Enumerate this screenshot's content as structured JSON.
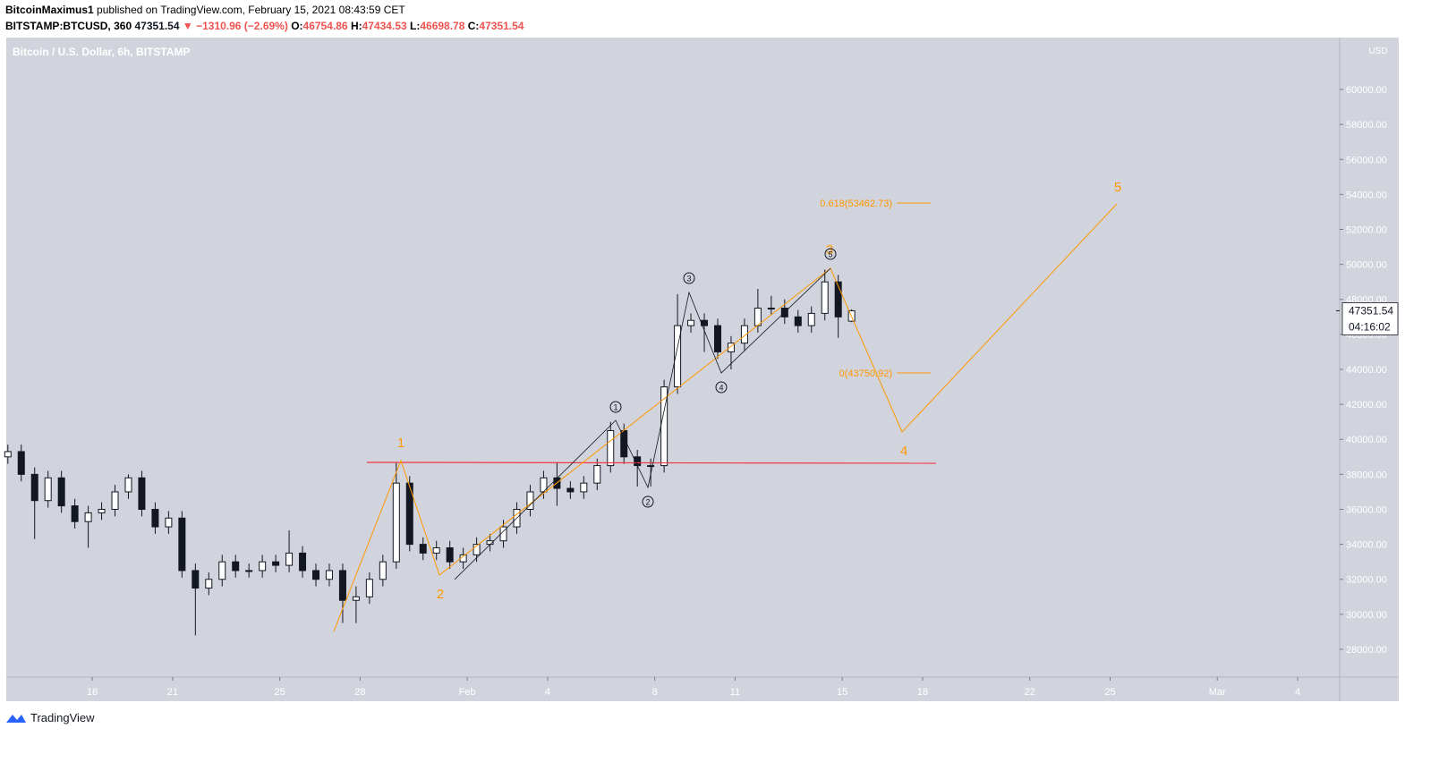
{
  "header": {
    "author": "BitcoinMaximus1",
    "published": "published on TradingView.com, February 15, 2021 08:43:59 CET",
    "symbol": "BITSTAMP:BTCUSD, 360",
    "last": "47351.54",
    "change": "▼ −1310.96 (−2.69%)",
    "ohlc": [
      {
        "label": "O:",
        "value": "46754.86"
      },
      {
        "label": "H:",
        "value": "47434.53"
      },
      {
        "label": "L:",
        "value": "46698.78"
      },
      {
        "label": "C:",
        "value": "47351.54"
      }
    ]
  },
  "chart_data": {
    "type": "candlestick",
    "title": "Bitcoin / U.S. Dollar, 6h, BITSTAMP",
    "currency": "USD",
    "last_price": 47351.54,
    "last_price_label": "47351.54",
    "countdown": "04:16:02",
    "up_color": "#ffffff",
    "down_color": "#131722",
    "background": "#d1d4dc",
    "x": [
      14.85,
      15.35,
      15.85,
      16.35,
      16.85,
      17.35,
      17.85,
      18.35,
      18.85,
      19.35,
      19.85,
      20.35,
      20.85,
      21.35,
      21.85,
      22.35,
      22.85,
      23.35,
      23.85,
      24.35,
      24.85,
      25.35,
      25.85,
      26.35,
      26.85,
      27.35,
      27.85,
      28.35,
      28.85,
      29.35,
      29.85,
      30.35,
      30.85,
      31.35,
      31.85,
      32.35,
      32.85,
      33.35,
      33.85,
      34.35,
      34.85,
      35.35,
      35.85,
      36.35,
      36.85,
      37.35,
      37.85,
      38.35,
      38.85,
      39.35,
      39.85,
      40.35,
      40.85,
      41.35,
      41.85,
      42.35,
      42.85,
      43.35,
      43.85,
      44.35,
      44.85,
      45.35,
      45.85,
      46.35
    ],
    "open": [
      39000,
      39300,
      38000,
      36500,
      37800,
      36200,
      35300,
      35800,
      36000,
      37000,
      37800,
      36000,
      35000,
      35500,
      32500,
      31500,
      32000,
      33000,
      32500,
      32500,
      33000,
      32800,
      33500,
      32500,
      32000,
      32500,
      30800,
      31000,
      32000,
      33000,
      37500,
      34000,
      33500,
      33800,
      33000,
      33400,
      34000,
      34200,
      35000,
      36000,
      37000,
      37800,
      37200,
      37000,
      37500,
      38500,
      40500,
      39000,
      38500,
      38500,
      43000,
      46500,
      46800,
      46500,
      45000,
      45500,
      46500,
      47500,
      47500,
      47000,
      46500,
      47200,
      49000,
      46754.86
    ],
    "high": [
      39700,
      39700,
      38400,
      38200,
      38200,
      36600,
      36200,
      36400,
      37400,
      38000,
      38200,
      36400,
      35900,
      35900,
      32900,
      32400,
      33400,
      33400,
      32900,
      33400,
      33400,
      34800,
      33900,
      32900,
      32900,
      32900,
      31600,
      32400,
      33400,
      38700,
      37900,
      34400,
      34200,
      34200,
      33800,
      34400,
      34600,
      35400,
      36400,
      37400,
      38200,
      38700,
      37600,
      37900,
      38900,
      41000,
      40900,
      39400,
      38900,
      43400,
      48300,
      47200,
      47200,
      46900,
      45900,
      46900,
      48600,
      48200,
      48000,
      47400,
      47600,
      49700,
      49400,
      47434.53
    ],
    "low": [
      38600,
      37600,
      34300,
      36100,
      35800,
      34900,
      33800,
      35400,
      35600,
      36600,
      35600,
      34600,
      34600,
      32100,
      28800,
      31100,
      31600,
      32100,
      32100,
      32100,
      32400,
      32400,
      32100,
      31600,
      31600,
      29500,
      29500,
      30600,
      31600,
      32600,
      33600,
      33100,
      33100,
      32600,
      32600,
      33000,
      33600,
      33800,
      34600,
      35600,
      36600,
      36200,
      36600,
      36600,
      37100,
      38100,
      38600,
      37300,
      37300,
      38100,
      42600,
      46100,
      45000,
      44600,
      44000,
      45100,
      46100,
      47100,
      46600,
      46100,
      46100,
      46800,
      45800,
      46698.78
    ],
    "close": [
      39300,
      38000,
      36500,
      37800,
      36200,
      35300,
      35800,
      36000,
      37000,
      37800,
      36000,
      35000,
      35500,
      32500,
      31500,
      32000,
      33000,
      32500,
      32500,
      33000,
      32800,
      33500,
      32500,
      32000,
      32500,
      30800,
      31000,
      32000,
      33000,
      37500,
      34000,
      33500,
      33800,
      33000,
      33400,
      34000,
      34200,
      35000,
      36000,
      37000,
      37800,
      37200,
      37000,
      37500,
      38500,
      40500,
      39000,
      38500,
      38500,
      43000,
      46500,
      46800,
      46500,
      45000,
      45500,
      46500,
      47500,
      47500,
      47000,
      46500,
      47200,
      49000,
      47000,
      47351.54
    ],
    "xlim": [
      14.79,
      64.57
    ],
    "xticks": [
      18,
      21,
      25,
      28,
      {
        "value": 32,
        "label": "Feb"
      },
      {
        "value": 35,
        "label": "4"
      },
      {
        "value": 39,
        "label": "8"
      },
      {
        "value": 42,
        "label": "11"
      },
      {
        "value": 46,
        "label": "15"
      },
      {
        "value": 49,
        "label": "18"
      },
      {
        "value": 53,
        "label": "22"
      },
      {
        "value": 56,
        "label": "25"
      },
      {
        "value": 60,
        "label": "Mar"
      },
      {
        "value": 63,
        "label": "4"
      }
    ],
    "ylim": [
      26415,
      62965
    ],
    "yticks": [
      {
        "value": 28000,
        "label": "28000.00"
      },
      {
        "value": 30000,
        "label": "30000.00"
      },
      {
        "value": 32000,
        "label": "32000.00"
      },
      {
        "value": 34000,
        "label": "34000.00"
      },
      {
        "value": 36000,
        "label": "36000.00"
      },
      {
        "value": 38000,
        "label": "38000.00"
      },
      {
        "value": 40000,
        "label": "40000.00"
      },
      {
        "value": 42000,
        "label": "42000.00"
      },
      {
        "value": 44000,
        "label": "44000.00"
      },
      {
        "value": 46000,
        "label": "46000.00"
      },
      {
        "value": 48000,
        "label": "48000.00"
      },
      {
        "value": 50000,
        "label": "50000.00"
      },
      {
        "value": 52000,
        "label": "52000.00"
      },
      {
        "value": 54000,
        "label": "54000.00"
      },
      {
        "value": 56000,
        "label": "56000.00"
      },
      {
        "value": 58000,
        "label": "58000.00"
      },
      {
        "value": 60000,
        "label": "60000.00"
      }
    ],
    "annotations": {
      "waves": [
        "1",
        "2",
        "3",
        "4",
        "5"
      ],
      "subwaves": [
        "1",
        "2",
        "3",
        "4",
        "5"
      ],
      "fib": [
        "0.618(53462.73)",
        "0(43750.92)"
      ]
    }
  },
  "footer": {
    "brand": "TradingView"
  }
}
